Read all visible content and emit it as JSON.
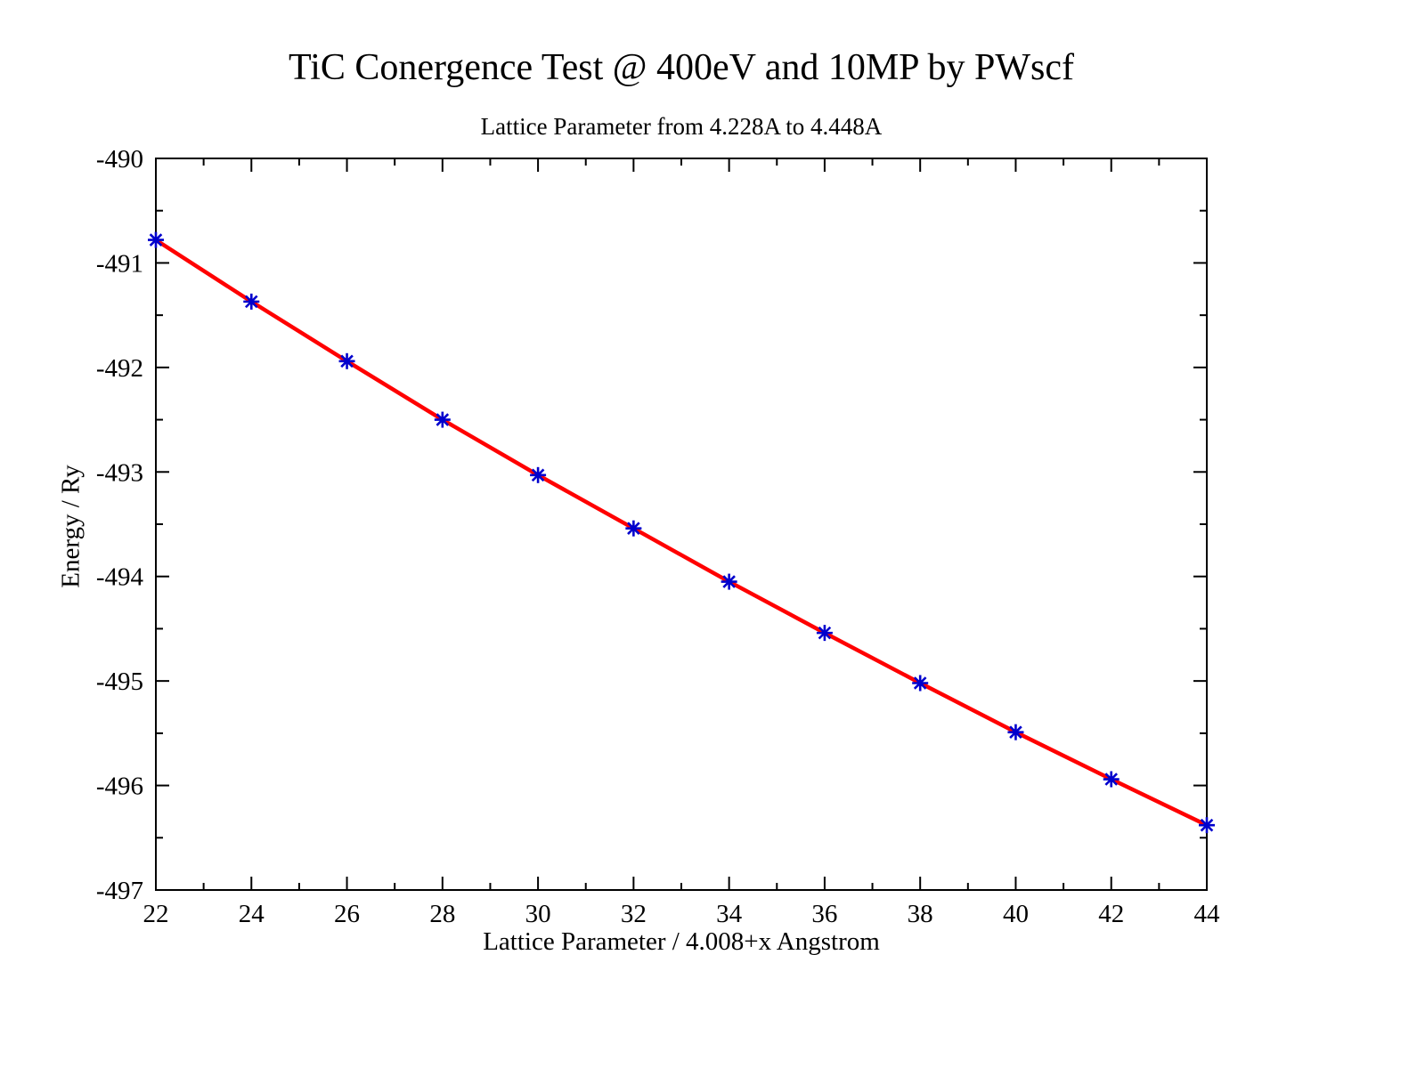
{
  "chart_data": {
    "type": "line",
    "title": "TiC Conergence Test @ 400eV and 10MP by PWscf",
    "subtitle": "Lattice Parameter from 4.228A to 4.448A",
    "xlabel": "Lattice Parameter / 4.008+x Angstrom",
    "ylabel": "Energy / Ry",
    "xlim": [
      22,
      44
    ],
    "ylim": [
      -497,
      -490
    ],
    "xtick_step": 2,
    "ytick_step": 1,
    "xtick_minor_step": 1,
    "ytick_minor_step": 0.5,
    "grid": false,
    "legend": "none",
    "line_color": "#ff0000",
    "marker_color": "#0000cd",
    "marker_style": "asterisk",
    "series": [
      {
        "name": "energy",
        "x": [
          22,
          24,
          26,
          28,
          30,
          32,
          34,
          36,
          38,
          40,
          42,
          44
        ],
        "y": [
          -490.78,
          -491.37,
          -491.94,
          -492.5,
          -493.03,
          -493.54,
          -494.05,
          -494.54,
          -495.02,
          -495.49,
          -495.94,
          -496.38
        ]
      }
    ]
  }
}
